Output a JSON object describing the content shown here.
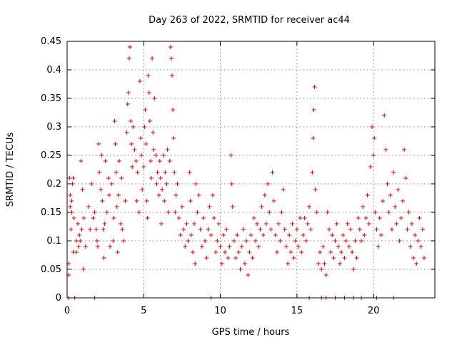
{
  "chart_data": {
    "type": "scatter",
    "title": "Day 263 of 2022, SRMTID for receiver ac44",
    "xlabel": "GPS time / hours",
    "ylabel": "SRMTID / TECUs",
    "xlim": [
      0,
      24
    ],
    "ylim": [
      0,
      0.45
    ],
    "xticks": [
      0,
      5,
      10,
      15,
      20
    ],
    "xtick_labels": [
      "0",
      "5",
      "10",
      "15",
      "20"
    ],
    "yticks": [
      0,
      0.05,
      0.1,
      0.15,
      0.2,
      0.25,
      0.3,
      0.35,
      0.4,
      0.45
    ],
    "ytick_labels": [
      "0",
      "0.05",
      "0.1",
      "0.15",
      "0.2",
      "0.25",
      "0.3",
      "0.35",
      "0.4",
      "0.45"
    ],
    "grid": true,
    "marker": "+",
    "color": "#e00000",
    "series": [
      {
        "name": "SRMTID",
        "points": [
          [
            0.1,
            0.04
          ],
          [
            0.1,
            0.06
          ],
          [
            0.15,
            0.21
          ],
          [
            0.2,
            0.18
          ],
          [
            0.2,
            0.16
          ],
          [
            0.25,
            0.12
          ],
          [
            0.3,
            0.17
          ],
          [
            0.3,
            0.15
          ],
          [
            0.35,
            0.2
          ],
          [
            0.4,
            0.21
          ],
          [
            0.4,
            0.08
          ],
          [
            0.45,
            0.14
          ],
          [
            0.6,
            0.1
          ],
          [
            0.6,
            0.08
          ],
          [
            0.7,
            0.13
          ],
          [
            0.75,
            0.09
          ],
          [
            0.8,
            0.11
          ],
          [
            0.85,
            0.1
          ],
          [
            0.9,
            0.24
          ],
          [
            0.95,
            0.12
          ],
          [
            1.0,
            0.19
          ],
          [
            1.05,
            0.05
          ],
          [
            1.1,
            0.14
          ],
          [
            1.2,
            0.09
          ],
          [
            1.4,
            0.16
          ],
          [
            1.5,
            0.12
          ],
          [
            1.6,
            0.2
          ],
          [
            1.7,
            0.14
          ],
          [
            1.8,
            0.15
          ],
          [
            1.9,
            0.12
          ],
          [
            1.95,
            0.1
          ],
          [
            2.0,
            0.09
          ],
          [
            2.05,
            0.27
          ],
          [
            2.1,
            0.22
          ],
          [
            2.2,
            0.19
          ],
          [
            2.25,
            0.25
          ],
          [
            2.3,
            0.17
          ],
          [
            2.35,
            0.12
          ],
          [
            2.4,
            0.07
          ],
          [
            2.45,
            0.13
          ],
          [
            2.5,
            0.24
          ],
          [
            2.6,
            0.15
          ],
          [
            2.7,
            0.21
          ],
          [
            2.75,
            0.18
          ],
          [
            2.8,
            0.09
          ],
          [
            2.9,
            0.2
          ],
          [
            3.0,
            0.1
          ],
          [
            3.05,
            0.14
          ],
          [
            3.1,
            0.31
          ],
          [
            3.15,
            0.27
          ],
          [
            3.2,
            0.22
          ],
          [
            3.25,
            0.16
          ],
          [
            3.3,
            0.08
          ],
          [
            3.35,
            0.18
          ],
          [
            3.4,
            0.24
          ],
          [
            3.5,
            0.13
          ],
          [
            3.55,
            0.21
          ],
          [
            3.6,
            0.12
          ],
          [
            3.7,
            0.1
          ],
          [
            3.8,
            0.17
          ],
          [
            3.9,
            0.29
          ],
          [
            3.95,
            0.34
          ],
          [
            4.0,
            0.36
          ],
          [
            4.05,
            0.42
          ],
          [
            4.1,
            0.44
          ],
          [
            4.15,
            0.31
          ],
          [
            4.2,
            0.27
          ],
          [
            4.25,
            0.23
          ],
          [
            4.3,
            0.3
          ],
          [
            4.4,
            0.26
          ],
          [
            4.5,
            0.24
          ],
          [
            4.55,
            0.17
          ],
          [
            4.6,
            0.22
          ],
          [
            4.7,
            0.15
          ],
          [
            4.75,
            0.38
          ],
          [
            4.8,
            0.28
          ],
          [
            4.85,
            0.25
          ],
          [
            4.9,
            0.19
          ],
          [
            5.0,
            0.23
          ],
          [
            5.05,
            0.3
          ],
          [
            5.1,
            0.33
          ],
          [
            5.15,
            0.27
          ],
          [
            5.2,
            0.17
          ],
          [
            5.25,
            0.14
          ],
          [
            5.3,
            0.39
          ],
          [
            5.35,
            0.36
          ],
          [
            5.4,
            0.31
          ],
          [
            5.45,
            0.24
          ],
          [
            5.5,
            0.21
          ],
          [
            5.55,
            0.42
          ],
          [
            5.6,
            0.29
          ],
          [
            5.65,
            0.26
          ],
          [
            5.7,
            0.35
          ],
          [
            5.8,
            0.25
          ],
          [
            5.85,
            0.2
          ],
          [
            5.9,
            0.22
          ],
          [
            6.0,
            0.18
          ],
          [
            6.05,
            0.24
          ],
          [
            6.1,
            0.21
          ],
          [
            6.15,
            0.13
          ],
          [
            6.2,
            0.19
          ],
          [
            6.3,
            0.25
          ],
          [
            6.35,
            0.17
          ],
          [
            6.4,
            0.22
          ],
          [
            6.5,
            0.2
          ],
          [
            6.55,
            0.26
          ],
          [
            6.6,
            0.15
          ],
          [
            6.7,
            0.24
          ],
          [
            6.75,
            0.44
          ],
          [
            6.8,
            0.42
          ],
          [
            6.85,
            0.39
          ],
          [
            6.9,
            0.33
          ],
          [
            6.95,
            0.28
          ],
          [
            7.0,
            0.22
          ],
          [
            7.05,
            0.15
          ],
          [
            7.1,
            0.18
          ],
          [
            7.2,
            0.2
          ],
          [
            7.3,
            0.14
          ],
          [
            7.4,
            0.11
          ],
          [
            7.5,
            0.16
          ],
          [
            7.6,
            0.12
          ],
          [
            7.7,
            0.09
          ],
          [
            7.8,
            0.13
          ],
          [
            7.9,
            0.1
          ],
          [
            8.0,
            0.22
          ],
          [
            8.05,
            0.17
          ],
          [
            8.1,
            0.11
          ],
          [
            8.2,
            0.08
          ],
          [
            8.3,
            0.13
          ],
          [
            8.35,
            0.06
          ],
          [
            8.4,
            0.2
          ],
          [
            8.5,
            0.15
          ],
          [
            8.6,
            0.18
          ],
          [
            8.7,
            0.12
          ],
          [
            8.8,
            0.09
          ],
          [
            8.9,
            0.14
          ],
          [
            9.0,
            0.1
          ],
          [
            9.1,
            0.07
          ],
          [
            9.2,
            0.12
          ],
          [
            9.3,
            0.16
          ],
          [
            9.4,
            0.11
          ],
          [
            9.5,
            0.18
          ],
          [
            9.6,
            0.14
          ],
          [
            9.7,
            0.08
          ],
          [
            9.8,
            0.1
          ],
          [
            9.9,
            0.13
          ],
          [
            10.0,
            0.09
          ],
          [
            10.1,
            0.06
          ],
          [
            10.2,
            0.11
          ],
          [
            10.3,
            0.08
          ],
          [
            10.4,
            0.12
          ],
          [
            10.5,
            0.07
          ],
          [
            10.6,
            0.09
          ],
          [
            10.7,
            0.25
          ],
          [
            10.75,
            0.2
          ],
          [
            10.8,
            0.16
          ],
          [
            10.9,
            0.1
          ],
          [
            11.0,
            0.07
          ],
          [
            11.1,
            0.11
          ],
          [
            11.2,
            0.08
          ],
          [
            11.3,
            0.05
          ],
          [
            11.4,
            0.09
          ],
          [
            11.5,
            0.12
          ],
          [
            11.6,
            0.06
          ],
          [
            11.7,
            0.1
          ],
          [
            11.8,
            0.04
          ],
          [
            11.9,
            0.08
          ],
          [
            12.0,
            0.11
          ],
          [
            12.1,
            0.07
          ],
          [
            12.2,
            0.14
          ],
          [
            12.3,
            0.1
          ],
          [
            12.4,
            0.13
          ],
          [
            12.5,
            0.09
          ],
          [
            12.6,
            0.12
          ],
          [
            12.7,
            0.16
          ],
          [
            12.8,
            0.11
          ],
          [
            12.9,
            0.18
          ],
          [
            13.0,
            0.13
          ],
          [
            13.1,
            0.2
          ],
          [
            13.2,
            0.15
          ],
          [
            13.3,
            0.12
          ],
          [
            13.4,
            0.22
          ],
          [
            13.5,
            0.17
          ],
          [
            13.6,
            0.11
          ],
          [
            13.7,
            0.08
          ],
          [
            13.8,
            0.13
          ],
          [
            13.9,
            0.1
          ],
          [
            14.0,
            0.15
          ],
          [
            14.1,
            0.19
          ],
          [
            14.2,
            0.12
          ],
          [
            14.3,
            0.09
          ],
          [
            14.4,
            0.06
          ],
          [
            14.5,
            0.11
          ],
          [
            14.6,
            0.08
          ],
          [
            14.7,
            0.13
          ],
          [
            14.8,
            0.07
          ],
          [
            14.9,
            0.1
          ],
          [
            15.0,
            0.12
          ],
          [
            15.1,
            0.09
          ],
          [
            15.2,
            0.14
          ],
          [
            15.3,
            0.08
          ],
          [
            15.4,
            0.11
          ],
          [
            15.5,
            0.14
          ],
          [
            15.6,
            0.1
          ],
          [
            15.7,
            0.13
          ],
          [
            15.8,
            0.16
          ],
          [
            15.9,
            0.12
          ],
          [
            16.0,
            0.22
          ],
          [
            16.05,
            0.28
          ],
          [
            16.1,
            0.33
          ],
          [
            16.15,
            0.37
          ],
          [
            16.2,
            0.19
          ],
          [
            16.3,
            0.15
          ],
          [
            16.4,
            0.06
          ],
          [
            16.5,
            0.08
          ],
          [
            16.6,
            0.05
          ],
          [
            16.7,
            0.09
          ],
          [
            16.8,
            0.06
          ],
          [
            16.9,
            0.04
          ],
          [
            17.0,
            0.15
          ],
          [
            17.1,
            0.12
          ],
          [
            17.2,
            0.08
          ],
          [
            17.3,
            0.11
          ],
          [
            17.4,
            0.07
          ],
          [
            17.5,
            0.1
          ],
          [
            17.6,
            0.13
          ],
          [
            17.7,
            0.09
          ],
          [
            17.8,
            0.06
          ],
          [
            17.9,
            0.08
          ],
          [
            18.0,
            0.11
          ],
          [
            18.1,
            0.07
          ],
          [
            18.2,
            0.1
          ],
          [
            18.3,
            0.13
          ],
          [
            18.4,
            0.09
          ],
          [
            18.5,
            0.12
          ],
          [
            18.6,
            0.08
          ],
          [
            18.7,
            0.05
          ],
          [
            18.8,
            0.1
          ],
          [
            18.9,
            0.07
          ],
          [
            19.0,
            0.14
          ],
          [
            19.1,
            0.12
          ],
          [
            19.2,
            0.1
          ],
          [
            19.3,
            0.16
          ],
          [
            19.4,
            0.11
          ],
          [
            19.5,
            0.14
          ],
          [
            19.6,
            0.18
          ],
          [
            19.7,
            0.13
          ],
          [
            19.8,
            0.23
          ],
          [
            19.9,
            0.3
          ],
          [
            20.0,
            0.25
          ],
          [
            20.05,
            0.28
          ],
          [
            20.1,
            0.15
          ],
          [
            20.2,
            0.12
          ],
          [
            20.3,
            0.09
          ],
          [
            20.4,
            0.14
          ],
          [
            20.5,
            0.11
          ],
          [
            20.6,
            0.17
          ],
          [
            20.7,
            0.32
          ],
          [
            20.8,
            0.26
          ],
          [
            20.9,
            0.2
          ],
          [
            21.0,
            0.15
          ],
          [
            21.1,
            0.18
          ],
          [
            21.2,
            0.12
          ],
          [
            21.3,
            0.22
          ],
          [
            21.4,
            0.16
          ],
          [
            21.5,
            0.13
          ],
          [
            21.6,
            0.19
          ],
          [
            21.7,
            0.1
          ],
          [
            21.8,
            0.14
          ],
          [
            21.9,
            0.17
          ],
          [
            22.0,
            0.26
          ],
          [
            22.1,
            0.21
          ],
          [
            22.2,
            0.12
          ],
          [
            22.3,
            0.15
          ],
          [
            22.4,
            0.09
          ],
          [
            22.5,
            0.13
          ],
          [
            22.6,
            0.07
          ],
          [
            22.7,
            0.11
          ],
          [
            22.8,
            0.06
          ],
          [
            22.9,
            0.1
          ],
          [
            23.0,
            0.14
          ],
          [
            23.1,
            0.09
          ],
          [
            23.2,
            0.12
          ],
          [
            23.3,
            0.07
          ]
        ]
      }
    ],
    "zero_points_x": [
      0.1,
      0.5,
      1.8,
      9.4,
      15.8,
      16.6,
      16.9,
      17.5,
      18.1,
      18.7,
      19.2,
      20.2,
      21.3
    ]
  }
}
